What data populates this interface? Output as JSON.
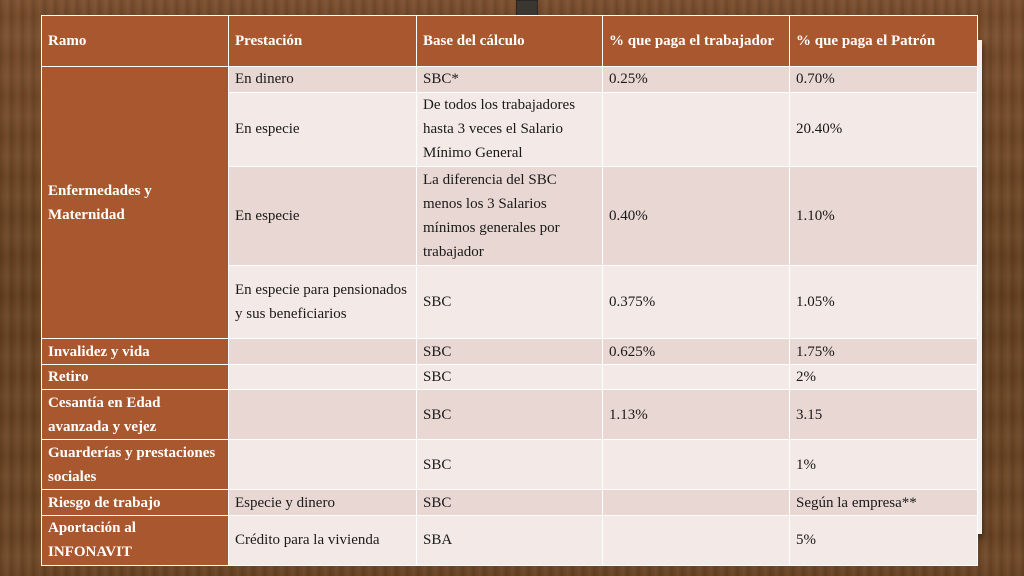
{
  "headers": [
    "Ramo",
    "Prestación",
    "Base del cálculo",
    "% que paga el trabajador",
    "% que paga el Patrón"
  ],
  "rows": [
    {
      "ramo": "Enfermedades y Maternidad",
      "prestacion": "En dinero",
      "base": "SBC*",
      "trabajador": "0.25%",
      "patron": "0.70%"
    },
    {
      "ramo": "",
      "prestacion": "En especie",
      "base": "De todos los trabajadores hasta 3 veces el Salario Mínimo General",
      "trabajador": "",
      "patron": "20.40%"
    },
    {
      "ramo": "",
      "prestacion": "En especie",
      "base": "La diferencia del SBC menos los 3 Salarios mínimos generales por trabajador",
      "trabajador": "0.40%",
      "patron": "1.10%"
    },
    {
      "ramo": "",
      "prestacion": "En especie para pensionados y sus beneficiarios",
      "base": "SBC",
      "trabajador": "0.375%",
      "patron": "1.05%"
    },
    {
      "ramo": "Invalidez y vida",
      "prestacion": "",
      "base": "SBC",
      "trabajador": "0.625%",
      "patron": "1.75%"
    },
    {
      "ramo": "Retiro",
      "prestacion": "",
      "base": "SBC",
      "trabajador": "",
      "patron": "2%"
    },
    {
      "ramo": "Cesantía en Edad avanzada y vejez",
      "prestacion": "",
      "base": "SBC",
      "trabajador": "1.13%",
      "patron": "3.15"
    },
    {
      "ramo": "Guarderías y prestaciones sociales",
      "prestacion": "",
      "base": "SBC",
      "trabajador": "",
      "patron": "1%"
    },
    {
      "ramo": "Riesgo de trabajo",
      "prestacion": "Especie y dinero",
      "base": "SBC",
      "trabajador": "",
      "patron": "Según la empresa**"
    },
    {
      "ramo": "Aportación al INFONAVIT",
      "prestacion": "Crédito para la vivienda",
      "base": "SBA",
      "trabajador": "",
      "patron": "5%"
    }
  ]
}
